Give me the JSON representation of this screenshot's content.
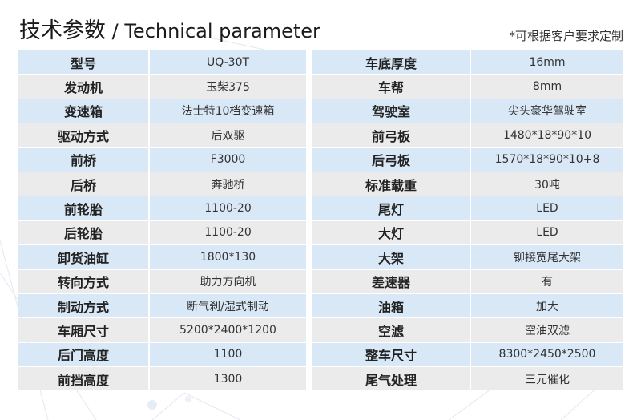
{
  "header": {
    "title_cn": "技术参数",
    "separator": " / ",
    "title_en": "Technical parameter",
    "note": "*可根据客户要求定制"
  },
  "left_table": [
    {
      "k": "型号",
      "v": "UQ-30T"
    },
    {
      "k": "发动机",
      "v": "玉柴375"
    },
    {
      "k": "变速箱",
      "v": "法士特10档变速箱"
    },
    {
      "k": "驱动方式",
      "v": "后双驱"
    },
    {
      "k": "前桥",
      "v": "F3000"
    },
    {
      "k": "后桥",
      "v": "奔驰桥"
    },
    {
      "k": "前轮胎",
      "v": "1100-20"
    },
    {
      "k": "后轮胎",
      "v": "1100-20"
    },
    {
      "k": "卸货油缸",
      "v": "1800*130"
    },
    {
      "k": "转向方式",
      "v": "助力方向机"
    },
    {
      "k": "制动方式",
      "v": "断气刹/湿式制动"
    },
    {
      "k": "车厢尺寸",
      "v": "5200*2400*1200"
    },
    {
      "k": "后门高度",
      "v": "1100"
    },
    {
      "k": "前挡高度",
      "v": "1300"
    }
  ],
  "right_table": [
    {
      "k": "车底厚度",
      "v": "16mm"
    },
    {
      "k": "车帮",
      "v": "8mm"
    },
    {
      "k": "驾驶室",
      "v": "尖头豪华驾驶室"
    },
    {
      "k": "前弓板",
      "v": "1480*18*90*10"
    },
    {
      "k": "后弓板",
      "v": "1570*18*90*10+8"
    },
    {
      "k": "标准载重",
      "v": "30吨"
    },
    {
      "k": "尾灯",
      "v": "LED"
    },
    {
      "k": "大灯",
      "v": "LED"
    },
    {
      "k": "大架",
      "v": "铆接宽尾大架"
    },
    {
      "k": "差速器",
      "v": "有"
    },
    {
      "k": "油箱",
      "v": "加大"
    },
    {
      "k": "空滤",
      "v": "空油双滤"
    },
    {
      "k": "整车尺寸",
      "v": "8300*2450*2500"
    },
    {
      "k": "尾气处理",
      "v": "三元催化"
    }
  ],
  "colors": {
    "row_blue": "#d9e8f6",
    "row_gray": "#ebebeb"
  }
}
